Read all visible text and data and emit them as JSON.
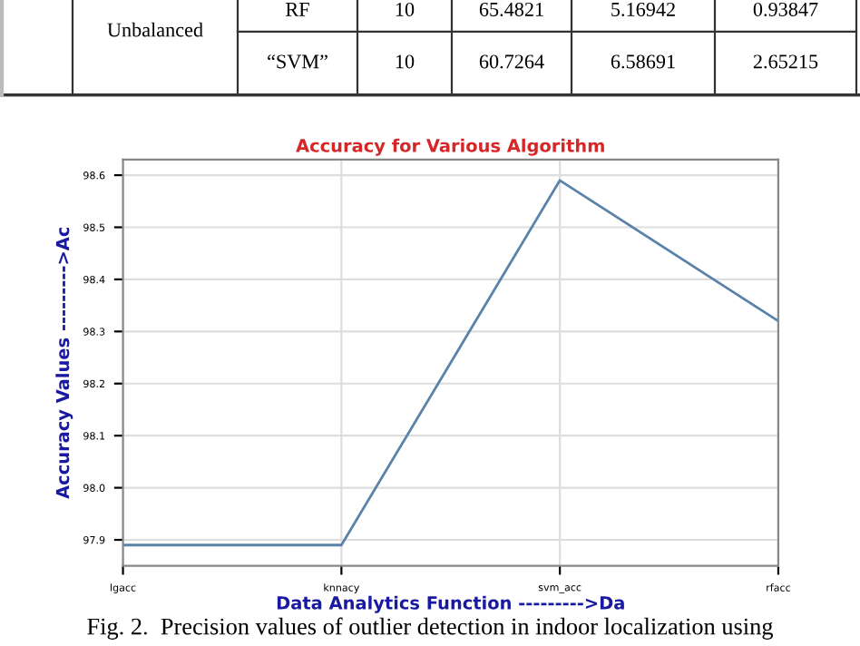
{
  "chart_data": [
    {
      "type": "other",
      "annotations": [
        "Unbalanced",
        "RF",
        "10",
        "65.4821",
        "5.16942",
        "0.93847",
        "“SVM”",
        "10",
        "60.7264",
        "6.58691",
        "2.65215"
      ]
    },
    {
      "type": "line",
      "title": "Accuracy for Various Algorithm",
      "xlabel": "Data Analytics Function --------->Da",
      "ylabel": "Accuracy Values --------->Ac",
      "categories": [
        "lgacc",
        "knnacy",
        "svm_acc",
        "rfacc"
      ],
      "series": [
        {
          "color": "#5b82a8",
          "values": [
            97.89,
            97.89,
            98.59,
            98.32
          ]
        }
      ],
      "ylim": [
        97.85,
        98.63
      ],
      "yticks": [
        97.9,
        {
          "value": 98.0,
          "label": "98.0"
        },
        98.1,
        98.2,
        98.3,
        98.4,
        98.5,
        98.6
      ],
      "grid": true,
      "marker": "none",
      "line_style": "solid",
      "annotations": [
        "Fig. 2.  Precision values of outlier detection in indoor localization using"
      ]
    }
  ]
}
